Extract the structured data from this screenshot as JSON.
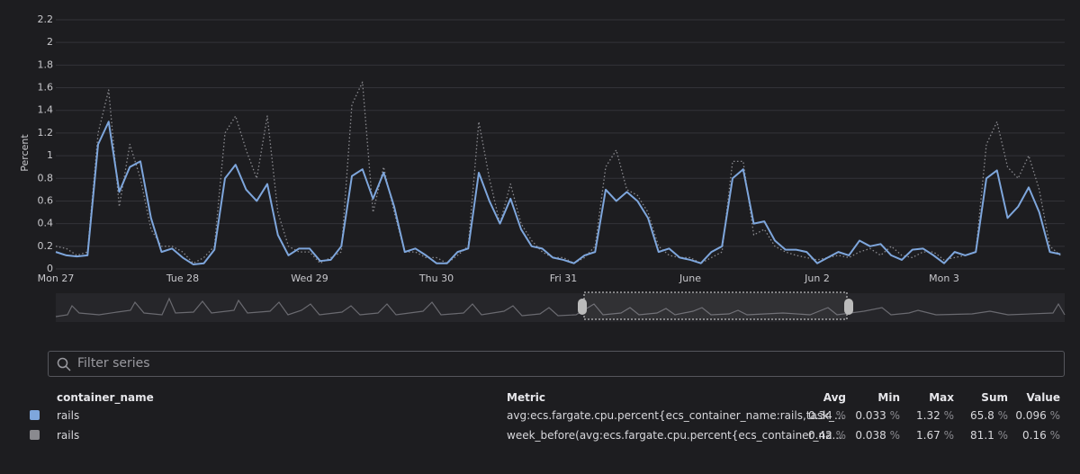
{
  "chart_data": {
    "type": "line",
    "y_label": "Percent",
    "categories": [
      "Mon 27",
      null,
      null,
      null,
      null,
      null,
      null,
      null,
      null,
      null,
      null,
      null,
      "Tue 28",
      null,
      null,
      null,
      null,
      null,
      null,
      null,
      null,
      null,
      null,
      null,
      "Wed 29",
      null,
      null,
      null,
      null,
      null,
      null,
      null,
      null,
      null,
      null,
      null,
      "Thu 30",
      null,
      null,
      null,
      null,
      null,
      null,
      null,
      null,
      null,
      null,
      null,
      "Fri 31",
      null,
      null,
      null,
      null,
      null,
      null,
      null,
      null,
      null,
      null,
      null,
      "June",
      null,
      null,
      null,
      null,
      null,
      null,
      null,
      null,
      null,
      null,
      null,
      "Jun 2",
      null,
      null,
      null,
      null,
      null,
      null,
      null,
      null,
      null,
      null,
      null,
      "Mon 3",
      null,
      null,
      null,
      null,
      null,
      null,
      null,
      null,
      null,
      null,
      null
    ],
    "series": [
      {
        "name": "rails",
        "color": "#7ea6dc",
        "style": "solid",
        "values": [
          0.15,
          0.12,
          0.11,
          0.12,
          1.1,
          1.3,
          0.68,
          0.9,
          0.95,
          0.45,
          0.15,
          0.18,
          0.1,
          0.04,
          0.05,
          0.17,
          0.8,
          0.92,
          0.7,
          0.6,
          0.75,
          0.3,
          0.12,
          0.18,
          0.18,
          0.07,
          0.08,
          0.2,
          0.82,
          0.88,
          0.62,
          0.85,
          0.55,
          0.15,
          0.18,
          0.12,
          0.05,
          0.05,
          0.15,
          0.18,
          0.85,
          0.6,
          0.4,
          0.62,
          0.35,
          0.2,
          0.18,
          0.1,
          0.08,
          0.05,
          0.12,
          0.15,
          0.7,
          0.6,
          0.68,
          0.6,
          0.45,
          0.15,
          0.18,
          0.1,
          0.08,
          0.05,
          0.15,
          0.2,
          0.8,
          0.88,
          0.4,
          0.42,
          0.25,
          0.17,
          0.17,
          0.15,
          0.05,
          0.1,
          0.15,
          0.12,
          0.25,
          0.2,
          0.22,
          0.12,
          0.08,
          0.17,
          0.18,
          0.12,
          0.05,
          0.15,
          0.12,
          0.15,
          0.8,
          0.87,
          0.45,
          0.55,
          0.72,
          0.5,
          0.15,
          0.13
        ]
      },
      {
        "name": "rails",
        "color": "#8a8a8f",
        "style": "dotted",
        "values": [
          0.2,
          0.18,
          0.12,
          0.15,
          1.2,
          1.58,
          0.55,
          1.1,
          0.8,
          0.35,
          0.2,
          0.2,
          0.15,
          0.05,
          0.1,
          0.2,
          1.2,
          1.35,
          1.05,
          0.8,
          1.35,
          0.5,
          0.2,
          0.15,
          0.15,
          0.05,
          0.1,
          0.15,
          1.45,
          1.65,
          0.5,
          0.9,
          0.5,
          0.15,
          0.15,
          0.1,
          0.1,
          0.05,
          0.12,
          0.2,
          1.3,
          0.8,
          0.4,
          0.75,
          0.4,
          0.25,
          0.15,
          0.1,
          0.1,
          0.05,
          0.1,
          0.2,
          0.9,
          1.05,
          0.7,
          0.65,
          0.5,
          0.2,
          0.12,
          0.1,
          0.1,
          0.05,
          0.1,
          0.15,
          0.95,
          0.95,
          0.3,
          0.35,
          0.2,
          0.15,
          0.12,
          0.1,
          0.08,
          0.1,
          0.12,
          0.1,
          0.15,
          0.18,
          0.12,
          0.2,
          0.12,
          0.1,
          0.15,
          0.15,
          0.08,
          0.1,
          0.12,
          0.15,
          1.1,
          1.3,
          0.9,
          0.8,
          1.0,
          0.7,
          0.2,
          0.12
        ]
      }
    ],
    "ylim": [
      0,
      2.2
    ],
    "yticks": [
      0,
      0.2,
      0.4,
      0.6,
      0.8,
      1,
      1.2,
      1.4,
      1.6,
      1.8,
      2,
      2.2
    ],
    "grid": true
  },
  "filter_placeholder": "Filter series",
  "table": {
    "columns": [
      "container_name",
      "Metric",
      "Avg",
      "Min",
      "Max",
      "Sum",
      "Value"
    ],
    "rows": [
      {
        "metric": "avg:ecs.fargate.cpu.percent{ecs_container_name:rails,task_...",
        "stats": [
          {
            "value": "0.34",
            "unit": "%"
          },
          {
            "value": "0.033",
            "unit": "%"
          },
          {
            "value": "1.32",
            "unit": "%"
          },
          {
            "value": "65.8",
            "unit": "%"
          },
          {
            "value": "0.096",
            "unit": "%"
          }
        ]
      },
      {
        "metric": "week_before(avg:ecs.fargate.cpu.percent{ecs_container_na...",
        "stats": [
          {
            "value": "0.42",
            "unit": "%"
          },
          {
            "value": "0.038",
            "unit": "%"
          },
          {
            "value": "1.67",
            "unit": "%"
          },
          {
            "value": "81.1",
            "unit": "%"
          },
          {
            "value": "0.16",
            "unit": "%"
          }
        ]
      }
    ]
  }
}
